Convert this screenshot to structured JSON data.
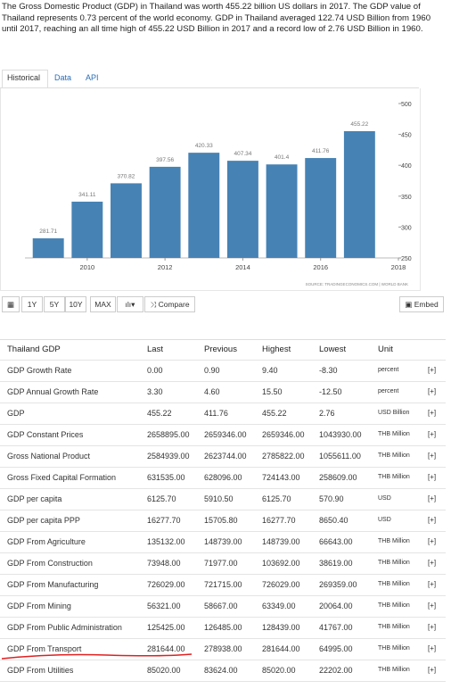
{
  "intro": "The Gross Domestic Product (GDP) in Thailand was worth 455.22 billion US dollars in 2017. The GDP value of Thailand represents 0.73 percent of the world economy. GDP in Thailand averaged 122.74 USD Billion from 1960 until 2017, reaching an all time high of 455.22 USD Billion in 2017 and a record low of 2.76 USD Billion in 1960.",
  "tabs": [
    "Historical",
    "Data",
    "API"
  ],
  "chart_data": {
    "type": "bar",
    "x": [
      2009,
      2010,
      2011,
      2012,
      2013,
      2014,
      2015,
      2016,
      2017
    ],
    "values": [
      281.71,
      341.11,
      370.82,
      397.56,
      420.33,
      407.34,
      401.4,
      411.76,
      455.22
    ],
    "color": "#4682b4",
    "xlim": [
      2008.4,
      2018
    ],
    "xticks": [
      2010,
      2012,
      2014,
      2016,
      2018
    ],
    "ylim": [
      250,
      500
    ],
    "yticks": [
      250,
      300,
      350,
      400,
      450,
      500
    ],
    "grid": false,
    "source": "SOURCE: TRADINGECONOMICS.COM | WORLD BANK"
  },
  "toolbar": {
    "ranges": [
      "1Y",
      "5Y",
      "10Y",
      "MAX"
    ],
    "compare": "Compare",
    "embed": "Embed"
  },
  "table": {
    "header": [
      "Thailand GDP",
      "Last",
      "Previous",
      "Highest",
      "Lowest",
      "Unit"
    ],
    "rows": [
      [
        "GDP Growth Rate",
        "0.00",
        "0.90",
        "9.40",
        "-8.30",
        "percent",
        "[+]"
      ],
      [
        "GDP Annual Growth Rate",
        "3.30",
        "4.60",
        "15.50",
        "-12.50",
        "percent",
        "[+]"
      ],
      [
        "GDP",
        "455.22",
        "411.76",
        "455.22",
        "2.76",
        "USD Billion",
        "[+]"
      ],
      [
        "GDP Constant Prices",
        "2658895.00",
        "2659346.00",
        "2659346.00",
        "1043930.00",
        "THB Million",
        "[+]"
      ],
      [
        "Gross National Product",
        "2584939.00",
        "2623744.00",
        "2785822.00",
        "1055611.00",
        "THB Million",
        "[+]"
      ],
      [
        "Gross Fixed Capital Formation",
        "631535.00",
        "628096.00",
        "724143.00",
        "258609.00",
        "THB Million",
        "[+]"
      ],
      [
        "GDP per capita",
        "6125.70",
        "5910.50",
        "6125.70",
        "570.90",
        "USD",
        "[+]"
      ],
      [
        "GDP per capita PPP",
        "16277.70",
        "15705.80",
        "16277.70",
        "8650.40",
        "USD",
        "[+]"
      ],
      [
        "GDP From Agriculture",
        "135132.00",
        "148739.00",
        "148739.00",
        "66643.00",
        "THB Million",
        "[+]"
      ],
      [
        "GDP From Construction",
        "73948.00",
        "71977.00",
        "103692.00",
        "38619.00",
        "THB Million",
        "[+]"
      ],
      [
        "GDP From Manufacturing",
        "726029.00",
        "721715.00",
        "726029.00",
        "269359.00",
        "THB Million",
        "[+]"
      ],
      [
        "GDP From Mining",
        "56321.00",
        "58667.00",
        "63349.00",
        "20064.00",
        "THB Million",
        "[+]"
      ],
      [
        "GDP From Public Administration",
        "125425.00",
        "126485.00",
        "128439.00",
        "41767.00",
        "THB Million",
        "[+]"
      ],
      [
        "GDP From Transport",
        "281644.00",
        "278938.00",
        "281644.00",
        "64995.00",
        "THB Million",
        "[+]"
      ],
      [
        "GDP From Utilities",
        "85020.00",
        "83624.00",
        "85020.00",
        "22202.00",
        "THB Million",
        "[+]"
      ]
    ]
  }
}
